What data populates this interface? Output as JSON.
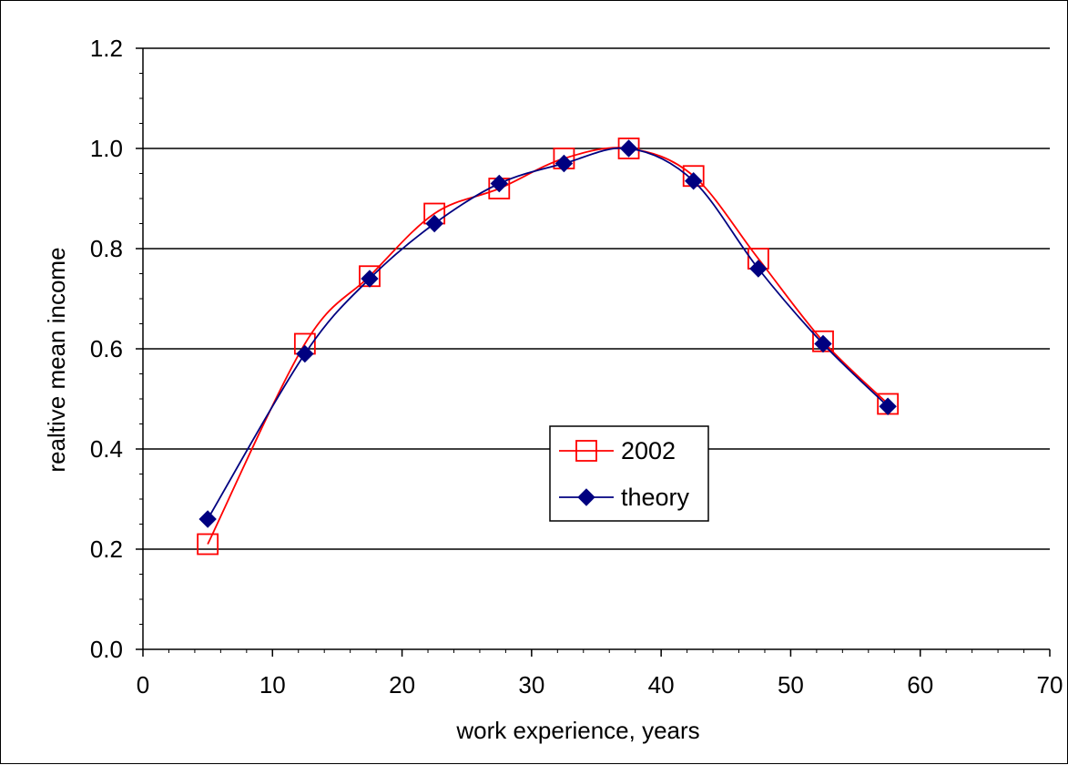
{
  "chart_data": {
    "type": "line",
    "xlabel": "work experience, years",
    "ylabel": "realtive mean income",
    "xlim": [
      0,
      70
    ],
    "ylim": [
      0.0,
      1.2
    ],
    "x_ticks": [
      0,
      10,
      20,
      30,
      40,
      50,
      60,
      70
    ],
    "y_ticks": [
      0.0,
      0.2,
      0.4,
      0.6,
      0.8,
      1.0,
      1.2
    ],
    "x_tick_labels": [
      "0",
      "10",
      "20",
      "30",
      "40",
      "50",
      "60",
      "70"
    ],
    "y_tick_labels": [
      "0.0",
      "0.2",
      "0.4",
      "0.6",
      "0.8",
      "1.0",
      "1.2"
    ],
    "grid": "horizontal",
    "legend_position": "center",
    "series": [
      {
        "name": "2002",
        "color": "#ff0000",
        "marker": "open-square",
        "x": [
          5,
          12.5,
          17.5,
          22.5,
          27.5,
          32.5,
          37.5,
          42.5,
          47.5,
          52.5,
          57.5
        ],
        "y": [
          0.21,
          0.61,
          0.745,
          0.87,
          0.92,
          0.98,
          1.0,
          0.945,
          0.78,
          0.615,
          0.49
        ]
      },
      {
        "name": "theory",
        "color": "#000080",
        "marker": "filled-diamond",
        "x": [
          5,
          12.5,
          17.5,
          22.5,
          27.5,
          32.5,
          37.5,
          42.5,
          47.5,
          52.5,
          57.5
        ],
        "y": [
          0.26,
          0.59,
          0.74,
          0.85,
          0.93,
          0.97,
          1.0,
          0.935,
          0.76,
          0.61,
          0.485
        ]
      }
    ]
  }
}
